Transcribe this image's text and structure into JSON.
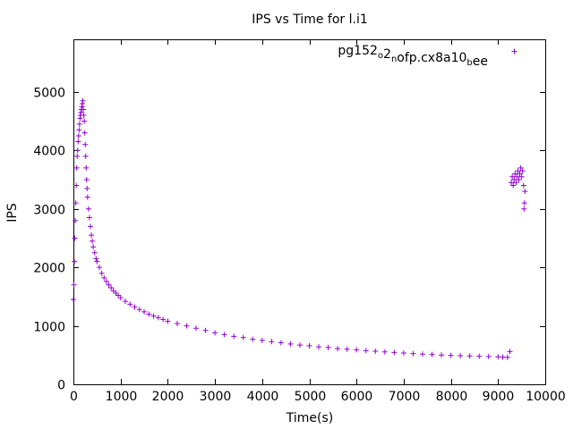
{
  "chart_data": {
    "type": "scatter",
    "title": "IPS vs Time for l.i1",
    "xlabel": "Time(s)",
    "ylabel": "IPS",
    "xlim": [
      0,
      10000
    ],
    "ylim": [
      0,
      5900
    ],
    "x_ticks": [
      0,
      1000,
      2000,
      3000,
      4000,
      5000,
      6000,
      7000,
      8000,
      9000,
      10000
    ],
    "y_ticks": [
      0,
      1000,
      2000,
      3000,
      4000,
      5000
    ],
    "grid": false,
    "legend_position": "top-right",
    "marker": "plus",
    "color": "#9400d3",
    "series": [
      {
        "name": "pg152_o2_nofp.cx8a10_bee",
        "points": [
          [
            0,
            1450
          ],
          [
            10,
            1700
          ],
          [
            20,
            2100
          ],
          [
            30,
            2500
          ],
          [
            40,
            2800
          ],
          [
            50,
            3100
          ],
          [
            60,
            3400
          ],
          [
            70,
            3700
          ],
          [
            80,
            3900
          ],
          [
            90,
            4000
          ],
          [
            100,
            4150
          ],
          [
            110,
            4250
          ],
          [
            120,
            4350
          ],
          [
            130,
            4450
          ],
          [
            140,
            4550
          ],
          [
            150,
            4600
          ],
          [
            160,
            4650
          ],
          [
            170,
            4700
          ],
          [
            180,
            4750
          ],
          [
            190,
            4800
          ],
          [
            200,
            4850
          ],
          [
            210,
            4700
          ],
          [
            220,
            4600
          ],
          [
            230,
            4500
          ],
          [
            240,
            4300
          ],
          [
            250,
            4100
          ],
          [
            260,
            3900
          ],
          [
            270,
            3700
          ],
          [
            280,
            3500
          ],
          [
            290,
            3350
          ],
          [
            300,
            3200
          ],
          [
            320,
            3000
          ],
          [
            340,
            2850
          ],
          [
            360,
            2700
          ],
          [
            380,
            2550
          ],
          [
            400,
            2450
          ],
          [
            420,
            2350
          ],
          [
            450,
            2250
          ],
          [
            480,
            2150
          ],
          [
            500,
            2100
          ],
          [
            550,
            2000
          ],
          [
            600,
            1900
          ],
          [
            650,
            1820
          ],
          [
            700,
            1760
          ],
          [
            750,
            1700
          ],
          [
            800,
            1650
          ],
          [
            850,
            1600
          ],
          [
            900,
            1560
          ],
          [
            950,
            1520
          ],
          [
            1000,
            1480
          ],
          [
            1100,
            1420
          ],
          [
            1200,
            1370
          ],
          [
            1300,
            1320
          ],
          [
            1400,
            1280
          ],
          [
            1500,
            1240
          ],
          [
            1600,
            1200
          ],
          [
            1700,
            1170
          ],
          [
            1800,
            1140
          ],
          [
            1900,
            1110
          ],
          [
            2000,
            1080
          ],
          [
            2200,
            1040
          ],
          [
            2400,
            1000
          ],
          [
            2600,
            960
          ],
          [
            2800,
            920
          ],
          [
            3000,
            880
          ],
          [
            3200,
            850
          ],
          [
            3400,
            820
          ],
          [
            3600,
            800
          ],
          [
            3800,
            770
          ],
          [
            4000,
            750
          ],
          [
            4200,
            730
          ],
          [
            4400,
            710
          ],
          [
            4600,
            690
          ],
          [
            4800,
            670
          ],
          [
            5000,
            660
          ],
          [
            5200,
            640
          ],
          [
            5400,
            630
          ],
          [
            5600,
            610
          ],
          [
            5800,
            600
          ],
          [
            6000,
            590
          ],
          [
            6200,
            575
          ],
          [
            6400,
            565
          ],
          [
            6600,
            555
          ],
          [
            6800,
            545
          ],
          [
            7000,
            535
          ],
          [
            7200,
            525
          ],
          [
            7400,
            515
          ],
          [
            7600,
            510
          ],
          [
            7800,
            500
          ],
          [
            8000,
            495
          ],
          [
            8200,
            490
          ],
          [
            8400,
            485
          ],
          [
            8600,
            480
          ],
          [
            8800,
            475
          ],
          [
            9000,
            470
          ],
          [
            9100,
            465
          ],
          [
            9200,
            460
          ],
          [
            9250,
            560
          ],
          [
            9280,
            3450
          ],
          [
            9300,
            3550
          ],
          [
            9320,
            3400
          ],
          [
            9340,
            3500
          ],
          [
            9360,
            3600
          ],
          [
            9380,
            3450
          ],
          [
            9400,
            3550
          ],
          [
            9420,
            3650
          ],
          [
            9440,
            3500
          ],
          [
            9460,
            3600
          ],
          [
            9480,
            3700
          ],
          [
            9500,
            3550
          ],
          [
            9520,
            3650
          ],
          [
            9540,
            3400
          ],
          [
            9550,
            3000
          ],
          [
            9560,
            3100
          ],
          [
            9570,
            3300
          ]
        ]
      }
    ]
  }
}
